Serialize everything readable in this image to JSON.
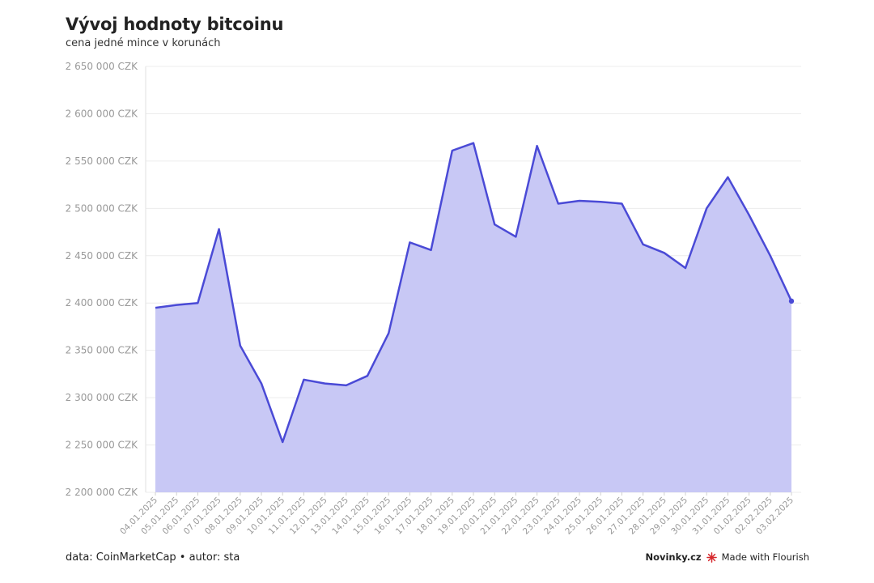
{
  "title": "Vývoj hodnoty bitcoinu",
  "subtitle": "cena jedné mince v korunách",
  "footer": {
    "source": "data: CoinMarketCap • autor: sta",
    "brand": "Novinky.cz",
    "made_with": "Made with Flourish"
  },
  "colors": {
    "line": "#4a4ad6",
    "fill": "#c8c8f5",
    "grid": "#ececec",
    "tick": "#999999"
  },
  "chart_data": {
    "type": "area",
    "title": "Vývoj hodnoty bitcoinu",
    "subtitle": "cena jedné mince v korunách",
    "xlabel": "",
    "ylabel": "",
    "ylim": [
      2200000,
      2650000
    ],
    "yticks": [
      2200000,
      2250000,
      2300000,
      2350000,
      2400000,
      2450000,
      2500000,
      2550000,
      2600000,
      2650000
    ],
    "ytick_labels": [
      "2 200 000 CZK",
      "2 250 000 CZK",
      "2 300 000 CZK",
      "2 350 000 CZK",
      "2 400 000 CZK",
      "2 450 000 CZK",
      "2 500 000 CZK",
      "2 550 000 CZK",
      "2 600 000 CZK",
      "2 650 000 CZK"
    ],
    "grid": true,
    "categories": [
      "04.01.2025",
      "05.01.2025",
      "06.01.2025",
      "07.01.2025",
      "08.01.2025",
      "09.01.2025",
      "10.01.2025",
      "11.01.2025",
      "12.01.2025",
      "13.01.2025",
      "14.01.2025",
      "15.01.2025",
      "16.01.2025",
      "17.01.2025",
      "18.01.2025",
      "19.01.2025",
      "20.01.2025",
      "21.01.2025",
      "22.01.2025",
      "23.01.2025",
      "24.01.2025",
      "25.01.2025",
      "26.01.2025",
      "27.01.2025",
      "28.01.2025",
      "29.01.2025",
      "30.01.2025",
      "31.01.2025",
      "01.02.2025",
      "02.02.2025",
      "03.02.2025"
    ],
    "values": [
      2395000,
      2398000,
      2400000,
      2478000,
      2355000,
      2315000,
      2253000,
      2319000,
      2315000,
      2313000,
      2323000,
      2368000,
      2464000,
      2456000,
      2561000,
      2569000,
      2483000,
      2470000,
      2566000,
      2505000,
      2508000,
      2507000,
      2505000,
      2462000,
      2453000,
      2437000,
      2500000,
      2533000,
      2493000,
      2450000,
      2402000
    ]
  }
}
